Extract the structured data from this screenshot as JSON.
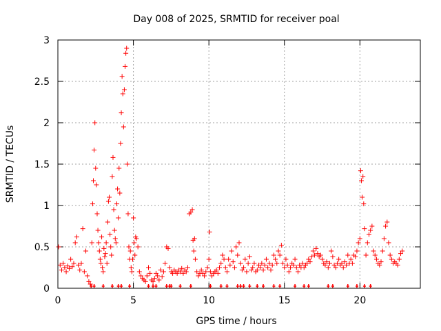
{
  "chart_data": {
    "type": "scatter",
    "title": "Day 008 of 2025, SRMTID for receiver poal",
    "xlabel": "GPS time / hours",
    "ylabel": "SRMTID / TECUs",
    "xlim": [
      0,
      24
    ],
    "ylim": [
      0,
      3
    ],
    "xticks": [
      0,
      5,
      10,
      15,
      20
    ],
    "xtick_labels": [
      "0",
      "5",
      "10",
      "15",
      "20"
    ],
    "yticks": [
      0,
      0.5,
      1,
      1.5,
      2,
      2.5,
      3
    ],
    "ytick_labels": [
      "0",
      "0.5",
      "1",
      "1.5",
      "2",
      "2.5",
      "3"
    ],
    "grid": true,
    "marker": "+",
    "color": "#ff0000",
    "series": [
      {
        "name": "SRMTID",
        "points": [
          [
            0.05,
            0.5
          ],
          [
            0.15,
            0.28
          ],
          [
            0.25,
            0.22
          ],
          [
            0.35,
            0.3
          ],
          [
            0.45,
            0.25
          ],
          [
            0.55,
            0.2
          ],
          [
            0.65,
            0.27
          ],
          [
            0.75,
            0.24
          ],
          [
            0.85,
            0.35
          ],
          [
            0.95,
            0.26
          ],
          [
            1.05,
            0.3
          ],
          [
            1.15,
            0.55
          ],
          [
            1.25,
            0.62
          ],
          [
            1.35,
            0.28
          ],
          [
            1.45,
            0.22
          ],
          [
            1.55,
            0.3
          ],
          [
            1.65,
            0.72
          ],
          [
            1.75,
            0.2
          ],
          [
            1.85,
            0.45
          ],
          [
            1.95,
            0.15
          ],
          [
            2.05,
            0.08
          ],
          [
            2.15,
            0.05
          ],
          [
            2.25,
            0.55
          ],
          [
            2.3,
            1.02
          ],
          [
            2.35,
            1.3
          ],
          [
            2.4,
            1.67
          ],
          [
            2.45,
            2.0
          ],
          [
            2.5,
            1.45
          ],
          [
            2.55,
            1.25
          ],
          [
            2.6,
            0.9
          ],
          [
            2.65,
            0.7
          ],
          [
            2.7,
            0.55
          ],
          [
            2.75,
            0.45
          ],
          [
            2.8,
            0.35
          ],
          [
            2.85,
            0.3
          ],
          [
            2.9,
            0.62
          ],
          [
            2.95,
            0.25
          ],
          [
            3.0,
            0.2
          ],
          [
            3.05,
            0.48
          ],
          [
            3.1,
            0.38
          ],
          [
            3.15,
            0.42
          ],
          [
            3.2,
            0.55
          ],
          [
            3.25,
            0.3
          ],
          [
            3.3,
            0.8
          ],
          [
            3.35,
            1.05
          ],
          [
            3.4,
            1.1
          ],
          [
            3.45,
            0.65
          ],
          [
            3.5,
            0.5
          ],
          [
            3.55,
            0.4
          ],
          [
            3.6,
            1.35
          ],
          [
            3.65,
            1.58
          ],
          [
            3.7,
            0.95
          ],
          [
            3.75,
            0.7
          ],
          [
            3.8,
            0.6
          ],
          [
            3.85,
            0.55
          ],
          [
            3.9,
            1.02
          ],
          [
            3.95,
            1.2
          ],
          [
            4.0,
            0.85
          ],
          [
            4.05,
            1.45
          ],
          [
            4.1,
            1.15
          ],
          [
            4.15,
            1.75
          ],
          [
            4.2,
            2.12
          ],
          [
            4.25,
            2.56
          ],
          [
            4.3,
            2.35
          ],
          [
            4.35,
            1.95
          ],
          [
            4.4,
            2.4
          ],
          [
            4.45,
            2.68
          ],
          [
            4.5,
            2.84
          ],
          [
            4.55,
            2.9
          ],
          [
            4.6,
            1.5
          ],
          [
            4.65,
            0.9
          ],
          [
            4.7,
            0.5
          ],
          [
            4.75,
            0.35
          ],
          [
            4.8,
            0.45
          ],
          [
            4.85,
            0.25
          ],
          [
            4.9,
            0.2
          ],
          [
            4.95,
            0.35
          ],
          [
            5.0,
            0.85
          ],
          [
            5.05,
            0.55
          ],
          [
            5.1,
            0.4
          ],
          [
            5.15,
            0.62
          ],
          [
            5.2,
            0.6
          ],
          [
            5.3,
            0.5
          ],
          [
            5.4,
            0.2
          ],
          [
            5.5,
            0.15
          ],
          [
            5.6,
            0.12
          ],
          [
            5.7,
            0.1
          ],
          [
            5.8,
            0.08
          ],
          [
            5.9,
            0.15
          ],
          [
            6.0,
            0.25
          ],
          [
            6.1,
            0.18
          ],
          [
            6.2,
            0.1
          ],
          [
            6.3,
            0.08
          ],
          [
            6.4,
            0.12
          ],
          [
            6.5,
            0.18
          ],
          [
            6.6,
            0.15
          ],
          [
            6.7,
            0.1
          ],
          [
            6.8,
            0.22
          ],
          [
            6.9,
            0.14
          ],
          [
            7.0,
            0.2
          ],
          [
            7.1,
            0.3
          ],
          [
            7.2,
            0.5
          ],
          [
            7.3,
            0.48
          ],
          [
            7.4,
            0.25
          ],
          [
            7.5,
            0.2
          ],
          [
            7.6,
            0.18
          ],
          [
            7.7,
            0.22
          ],
          [
            7.8,
            0.2
          ],
          [
            7.9,
            0.18
          ],
          [
            8.0,
            0.22
          ],
          [
            8.1,
            0.2
          ],
          [
            8.2,
            0.24
          ],
          [
            8.3,
            0.18
          ],
          [
            8.4,
            0.22
          ],
          [
            8.5,
            0.2
          ],
          [
            8.6,
            0.25
          ],
          [
            8.7,
            0.9
          ],
          [
            8.8,
            0.92
          ],
          [
            8.9,
            0.95
          ],
          [
            8.95,
            0.58
          ],
          [
            9.0,
            0.45
          ],
          [
            9.05,
            0.6
          ],
          [
            9.1,
            0.35
          ],
          [
            9.2,
            0.2
          ],
          [
            9.3,
            0.15
          ],
          [
            9.4,
            0.18
          ],
          [
            9.5,
            0.22
          ],
          [
            9.6,
            0.18
          ],
          [
            9.7,
            0.15
          ],
          [
            9.8,
            0.2
          ],
          [
            9.9,
            0.25
          ],
          [
            10.0,
            0.35
          ],
          [
            10.05,
            0.68
          ],
          [
            10.1,
            0.2
          ],
          [
            10.2,
            0.15
          ],
          [
            10.3,
            0.18
          ],
          [
            10.4,
            0.2
          ],
          [
            10.5,
            0.22
          ],
          [
            10.6,
            0.18
          ],
          [
            10.7,
            0.25
          ],
          [
            10.8,
            0.3
          ],
          [
            10.9,
            0.4
          ],
          [
            11.0,
            0.35
          ],
          [
            11.1,
            0.25
          ],
          [
            11.2,
            0.2
          ],
          [
            11.3,
            0.35
          ],
          [
            11.4,
            0.28
          ],
          [
            11.5,
            0.45
          ],
          [
            11.6,
            0.32
          ],
          [
            11.7,
            0.25
          ],
          [
            11.8,
            0.5
          ],
          [
            11.9,
            0.4
          ],
          [
            12.0,
            0.55
          ],
          [
            12.1,
            0.3
          ],
          [
            12.2,
            0.22
          ],
          [
            12.3,
            0.25
          ],
          [
            12.4,
            0.35
          ],
          [
            12.5,
            0.2
          ],
          [
            12.6,
            0.3
          ],
          [
            12.7,
            0.38
          ],
          [
            12.8,
            0.22
          ],
          [
            12.9,
            0.25
          ],
          [
            13.0,
            0.3
          ],
          [
            13.1,
            0.2
          ],
          [
            13.2,
            0.22
          ],
          [
            13.3,
            0.28
          ],
          [
            13.4,
            0.25
          ],
          [
            13.5,
            0.3
          ],
          [
            13.6,
            0.22
          ],
          [
            13.7,
            0.28
          ],
          [
            13.8,
            0.35
          ],
          [
            13.9,
            0.25
          ],
          [
            14.0,
            0.3
          ],
          [
            14.1,
            0.22
          ],
          [
            14.2,
            0.28
          ],
          [
            14.3,
            0.4
          ],
          [
            14.4,
            0.35
          ],
          [
            14.5,
            0.3
          ],
          [
            14.6,
            0.45
          ],
          [
            14.7,
            0.4
          ],
          [
            14.8,
            0.52
          ],
          [
            14.9,
            0.3
          ],
          [
            15.0,
            0.25
          ],
          [
            15.1,
            0.35
          ],
          [
            15.2,
            0.28
          ],
          [
            15.3,
            0.2
          ],
          [
            15.4,
            0.25
          ],
          [
            15.5,
            0.3
          ],
          [
            15.6,
            0.28
          ],
          [
            15.7,
            0.35
          ],
          [
            15.8,
            0.25
          ],
          [
            15.9,
            0.2
          ],
          [
            16.0,
            0.28
          ],
          [
            16.1,
            0.25
          ],
          [
            16.2,
            0.3
          ],
          [
            16.3,
            0.25
          ],
          [
            16.4,
            0.28
          ],
          [
            16.5,
            0.3
          ],
          [
            16.6,
            0.35
          ],
          [
            16.7,
            0.32
          ],
          [
            16.8,
            0.38
          ],
          [
            16.9,
            0.45
          ],
          [
            17.0,
            0.4
          ],
          [
            17.1,
            0.48
          ],
          [
            17.2,
            0.42
          ],
          [
            17.3,
            0.38
          ],
          [
            17.4,
            0.4
          ],
          [
            17.5,
            0.35
          ],
          [
            17.6,
            0.3
          ],
          [
            17.7,
            0.28
          ],
          [
            17.8,
            0.32
          ],
          [
            17.9,
            0.25
          ],
          [
            18.0,
            0.3
          ],
          [
            18.1,
            0.45
          ],
          [
            18.2,
            0.38
          ],
          [
            18.3,
            0.28
          ],
          [
            18.4,
            0.25
          ],
          [
            18.5,
            0.3
          ],
          [
            18.6,
            0.35
          ],
          [
            18.7,
            0.28
          ],
          [
            18.8,
            0.3
          ],
          [
            18.9,
            0.25
          ],
          [
            19.0,
            0.32
          ],
          [
            19.1,
            0.28
          ],
          [
            19.2,
            0.4
          ],
          [
            19.3,
            0.3
          ],
          [
            19.4,
            0.35
          ],
          [
            19.5,
            0.3
          ],
          [
            19.6,
            0.4
          ],
          [
            19.7,
            0.38
          ],
          [
            19.8,
            0.45
          ],
          [
            19.9,
            0.55
          ],
          [
            20.0,
            0.6
          ],
          [
            20.05,
            1.42
          ],
          [
            20.1,
            1.3
          ],
          [
            20.15,
            1.1
          ],
          [
            20.2,
            1.35
          ],
          [
            20.25,
            1.02
          ],
          [
            20.3,
            0.72
          ],
          [
            20.4,
            0.4
          ],
          [
            20.5,
            0.55
          ],
          [
            20.6,
            0.65
          ],
          [
            20.7,
            0.7
          ],
          [
            20.8,
            0.75
          ],
          [
            20.9,
            0.45
          ],
          [
            21.0,
            0.4
          ],
          [
            21.1,
            0.35
          ],
          [
            21.2,
            0.3
          ],
          [
            21.3,
            0.28
          ],
          [
            21.4,
            0.32
          ],
          [
            21.5,
            0.45
          ],
          [
            21.6,
            0.6
          ],
          [
            21.7,
            0.75
          ],
          [
            21.8,
            0.8
          ],
          [
            21.9,
            0.55
          ],
          [
            22.0,
            0.4
          ],
          [
            22.1,
            0.35
          ],
          [
            22.2,
            0.3
          ],
          [
            22.3,
            0.32
          ],
          [
            22.4,
            0.3
          ],
          [
            22.5,
            0.28
          ],
          [
            22.6,
            0.35
          ],
          [
            22.7,
            0.42
          ],
          [
            22.8,
            0.45
          ]
        ]
      }
    ],
    "baseline_markers": [
      2.2,
      2.4,
      3.0,
      3.6,
      4.0,
      4.2,
      4.75,
      6.0,
      6.3,
      6.5,
      7.2,
      7.4,
      7.5,
      8.1,
      8.8,
      10.1,
      10.8,
      11.2,
      11.9,
      12.1,
      12.3,
      12.7,
      13.2,
      13.6,
      14.3,
      14.7,
      15.7,
      16.3,
      16.6,
      17.9,
      18.2,
      19.2,
      19.8,
      20.3,
      20.7
    ]
  }
}
